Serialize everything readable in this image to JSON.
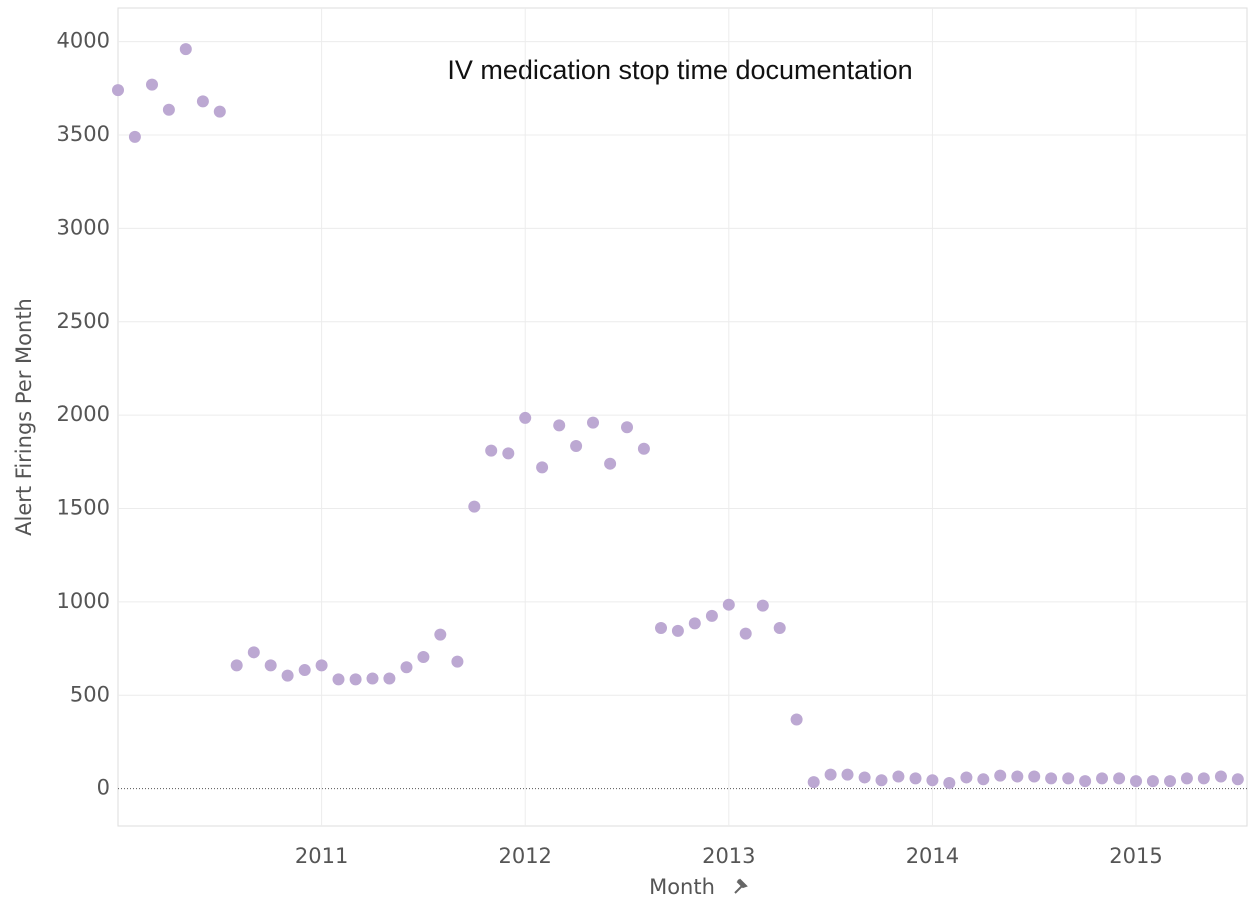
{
  "chart_data": {
    "type": "scatter",
    "title": "IV medication stop time documentation",
    "x_label": "Month",
    "y_label": "Alert Firings Per Month",
    "color": "#bca8d2",
    "grid": true,
    "xlim": [
      2010,
      2015.55
    ],
    "xticks": [
      2011,
      2012,
      2013,
      2014,
      2015
    ],
    "ylim": [
      -200,
      4180
    ],
    "yticks": [
      0,
      500,
      1000,
      1500,
      2000,
      2500,
      3000,
      3500,
      4000
    ],
    "x": [
      2010,
      2010.083,
      2010.167,
      2010.25,
      2010.333,
      2010.417,
      2010.5,
      2010.583,
      2010.667,
      2010.75,
      2010.833,
      2010.917,
      2011,
      2011.083,
      2011.167,
      2011.25,
      2011.333,
      2011.417,
      2011.5,
      2011.583,
      2011.667,
      2011.75,
      2011.833,
      2011.917,
      2012,
      2012.083,
      2012.167,
      2012.25,
      2012.333,
      2012.417,
      2012.5,
      2012.583,
      2012.667,
      2012.75,
      2012.833,
      2012.917,
      2013,
      2013.083,
      2013.167,
      2013.25,
      2013.333,
      2013.417,
      2013.5,
      2013.583,
      2013.667,
      2013.75,
      2013.833,
      2013.917,
      2014,
      2014.083,
      2014.167,
      2014.25,
      2014.333,
      2014.417,
      2014.5,
      2014.583,
      2014.667,
      2014.75,
      2014.833,
      2014.917,
      2015,
      2015.083,
      2015.167,
      2015.25,
      2015.333,
      2015.417,
      2015.5
    ],
    "values": [
      3740,
      3490,
      3770,
      3635,
      3960,
      3680,
      3625,
      660,
      730,
      660,
      605,
      635,
      660,
      585,
      585,
      590,
      590,
      650,
      705,
      825,
      680,
      1510,
      1810,
      1795,
      1985,
      1720,
      1945,
      1835,
      1960,
      1740,
      1935,
      1820,
      860,
      845,
      885,
      925,
      985,
      830,
      980,
      860,
      370,
      35,
      75,
      75,
      60,
      45,
      65,
      55,
      45,
      30,
      60,
      50,
      70,
      65,
      65,
      55,
      55,
      40,
      55,
      55,
      40,
      40,
      40,
      55,
      55,
      65,
      50
    ]
  }
}
